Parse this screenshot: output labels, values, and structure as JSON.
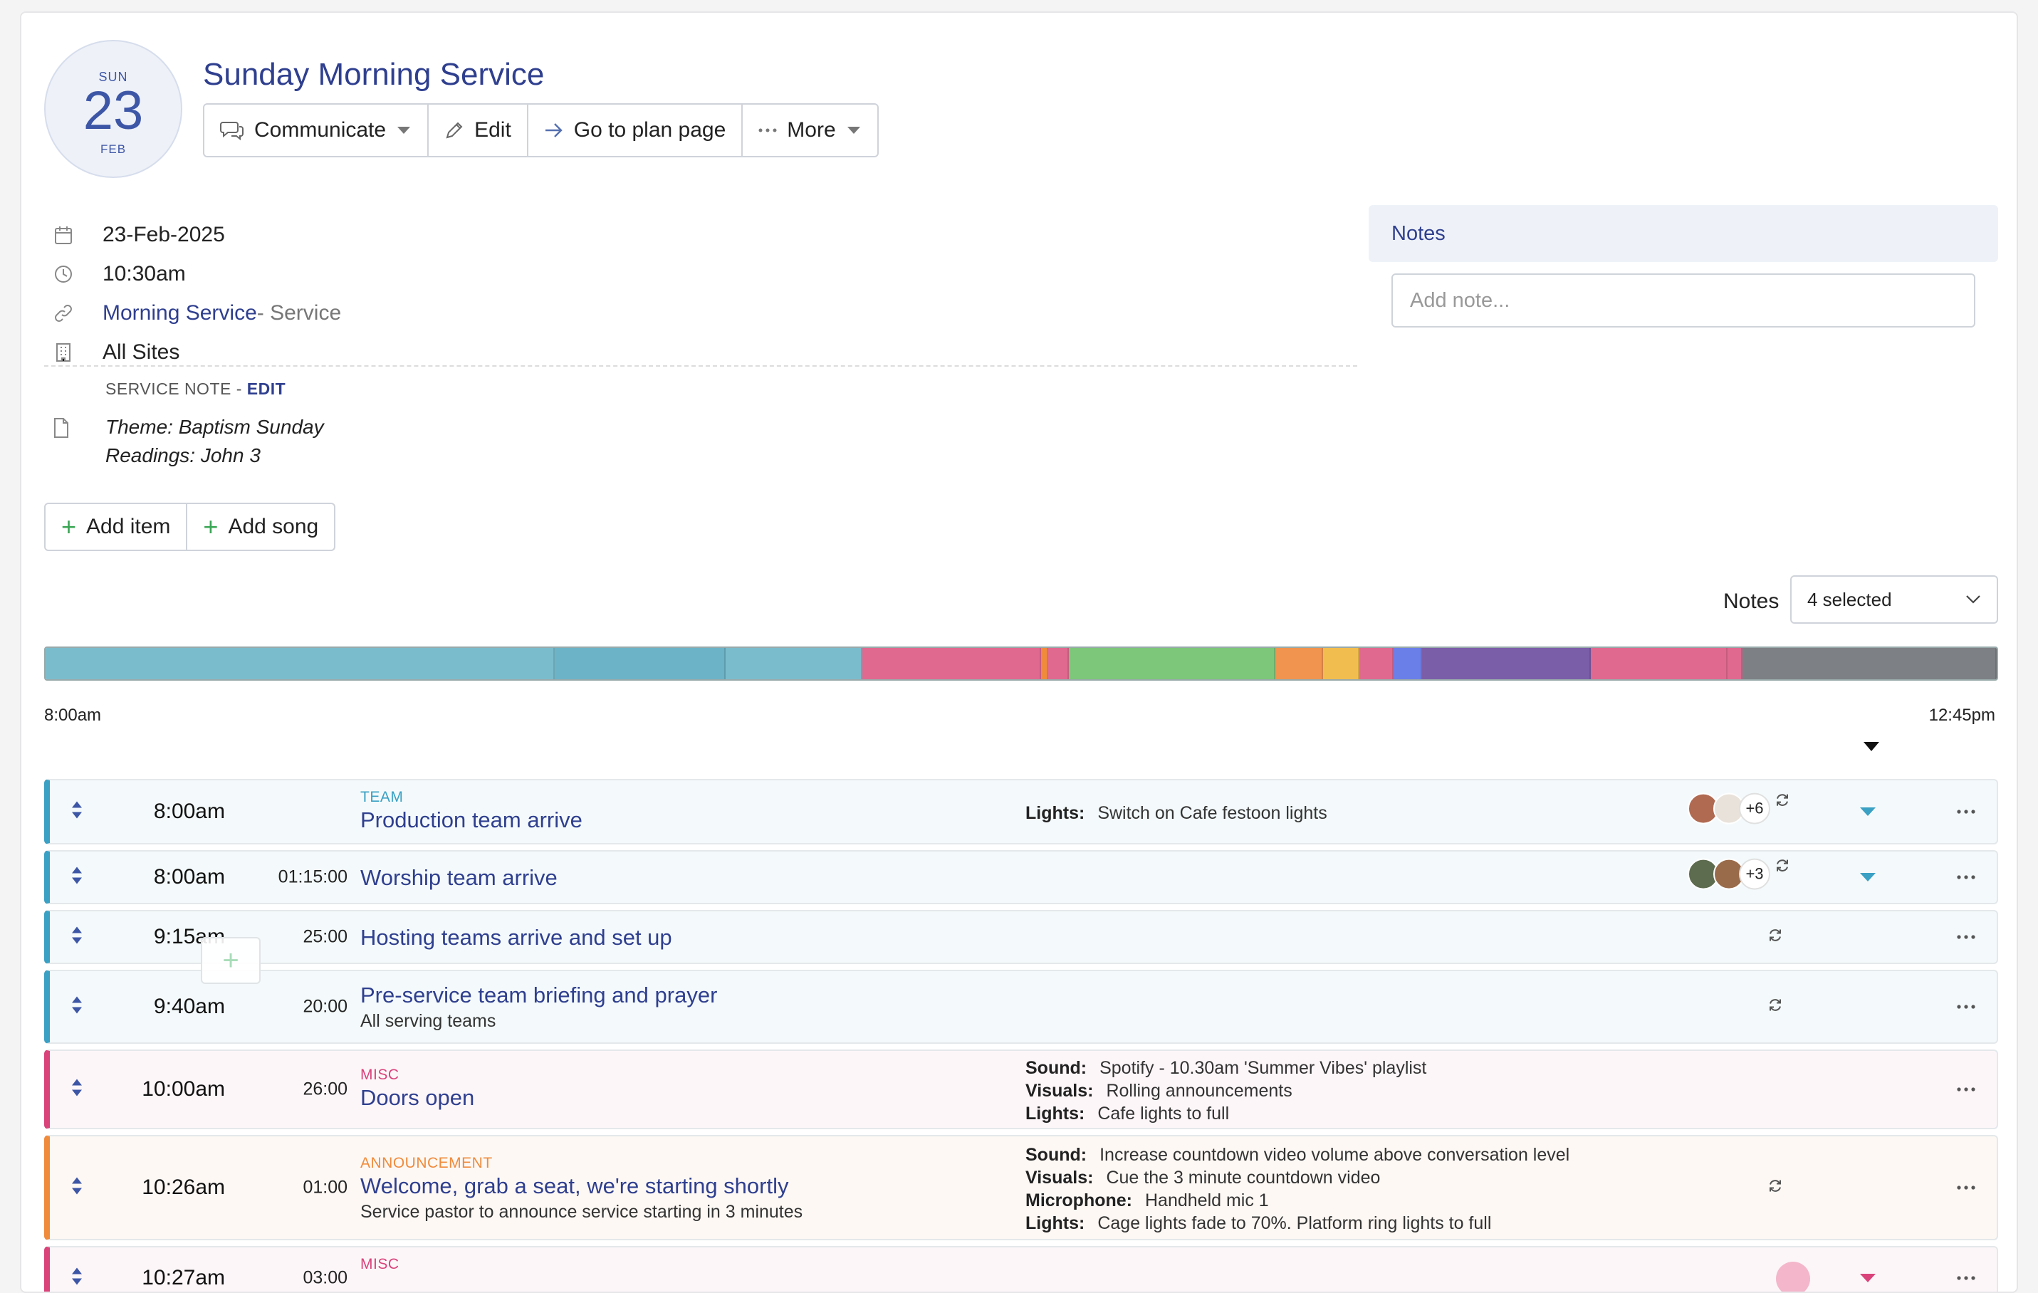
{
  "event": {
    "day_of_week": "SUN",
    "day": "23",
    "month": "FEB",
    "title": "Sunday Morning Service"
  },
  "toolbar": {
    "communicate": "Communicate",
    "edit": "Edit",
    "go_to_plan": "Go to plan page",
    "more": "More"
  },
  "details": {
    "date": "23-Feb-2025",
    "time": "10:30am",
    "service_link": "Morning Service",
    "service_type": " - Service",
    "sites": "All Sites"
  },
  "service_note": {
    "label": "SERVICE NOTE - ",
    "edit": "EDIT",
    "line1": "Theme: Baptism Sunday",
    "line2": "Readings: John 3"
  },
  "add_buttons": {
    "add_item": "Add item",
    "add_song": "Add song"
  },
  "notes_panel": {
    "title": "Notes",
    "placeholder": "Add note..."
  },
  "notes_filter": {
    "label": "Notes",
    "selected": "4 selected"
  },
  "timeline": {
    "start": "8:00am",
    "end": "12:45pm",
    "segments": [
      {
        "color": "#7bbccc",
        "share": 0.263
      },
      {
        "color": "#6cb3c7",
        "share": 0.088
      },
      {
        "color": "#7bbccc",
        "share": 0.07
      },
      {
        "color": "#e0698f",
        "share": 0.092
      },
      {
        "color": "#f08b3c",
        "share": 0.003
      },
      {
        "color": "#e0698f",
        "share": 0.01
      },
      {
        "color": "#7dc77a",
        "share": 0.106
      },
      {
        "color": "#f0944f",
        "share": 0.024
      },
      {
        "color": "#f2bd4f",
        "share": 0.018
      },
      {
        "color": "#e0698f",
        "share": 0.017
      },
      {
        "color": "#6b7fe8",
        "share": 0.014
      },
      {
        "color": "#7b5ea8",
        "share": 0.087
      },
      {
        "color": "#e0698f",
        "share": 0.07
      },
      {
        "color": "#e0698f",
        "share": 0.007
      },
      {
        "color": "#7d8085",
        "share": 0.131
      }
    ]
  },
  "colors": {
    "team": "#3aa0c4",
    "misc": "#d9437a",
    "announcement": "#f08b3c"
  },
  "items": [
    {
      "time": "8:00am",
      "duration": "",
      "category": "TEAM",
      "title": "Production team arrive",
      "subtitle": "",
      "notes": [
        {
          "k": "Lights:",
          "v": "Switch on Cafe festoon lights"
        }
      ],
      "avatar_count": "+6"
    },
    {
      "time": "8:00am",
      "duration": "01:15:00",
      "category": "",
      "title": "Worship team arrive",
      "subtitle": "",
      "notes": [],
      "avatar_count": "+3"
    },
    {
      "time": "9:15am",
      "duration": "25:00",
      "category": "",
      "title": "Hosting teams arrive and set up",
      "subtitle": "",
      "notes": []
    },
    {
      "time": "9:40am",
      "duration": "20:00",
      "category": "",
      "title": "Pre-service team briefing and prayer",
      "subtitle": "All serving teams",
      "notes": []
    },
    {
      "time": "10:00am",
      "duration": "26:00",
      "category": "MISC",
      "title": "Doors open",
      "subtitle": "",
      "notes": [
        {
          "k": "Sound:",
          "v": "Spotify - 10.30am 'Summer Vibes' playlist"
        },
        {
          "k": "Visuals:",
          "v": "Rolling announcements"
        },
        {
          "k": "Lights:",
          "v": "Cafe lights to full"
        }
      ]
    },
    {
      "time": "10:26am",
      "duration": "01:00",
      "category": "ANNOUNCEMENT",
      "title": "Welcome, grab a seat, we're starting shortly",
      "subtitle": "Service pastor to announce service starting in 3 minutes",
      "notes": [
        {
          "k": "Sound:",
          "v": "Increase countdown video volume above conversation level"
        },
        {
          "k": "Visuals:",
          "v": "Cue the 3 minute countdown video"
        },
        {
          "k": "Microphone:",
          "v": "Handheld mic 1"
        },
        {
          "k": "Lights:",
          "v": "Cage lights fade to 70%. Platform ring lights to full"
        }
      ]
    },
    {
      "time": "10:27am",
      "duration": "03:00",
      "category": "MISC",
      "title": "",
      "subtitle": "",
      "notes": []
    }
  ]
}
